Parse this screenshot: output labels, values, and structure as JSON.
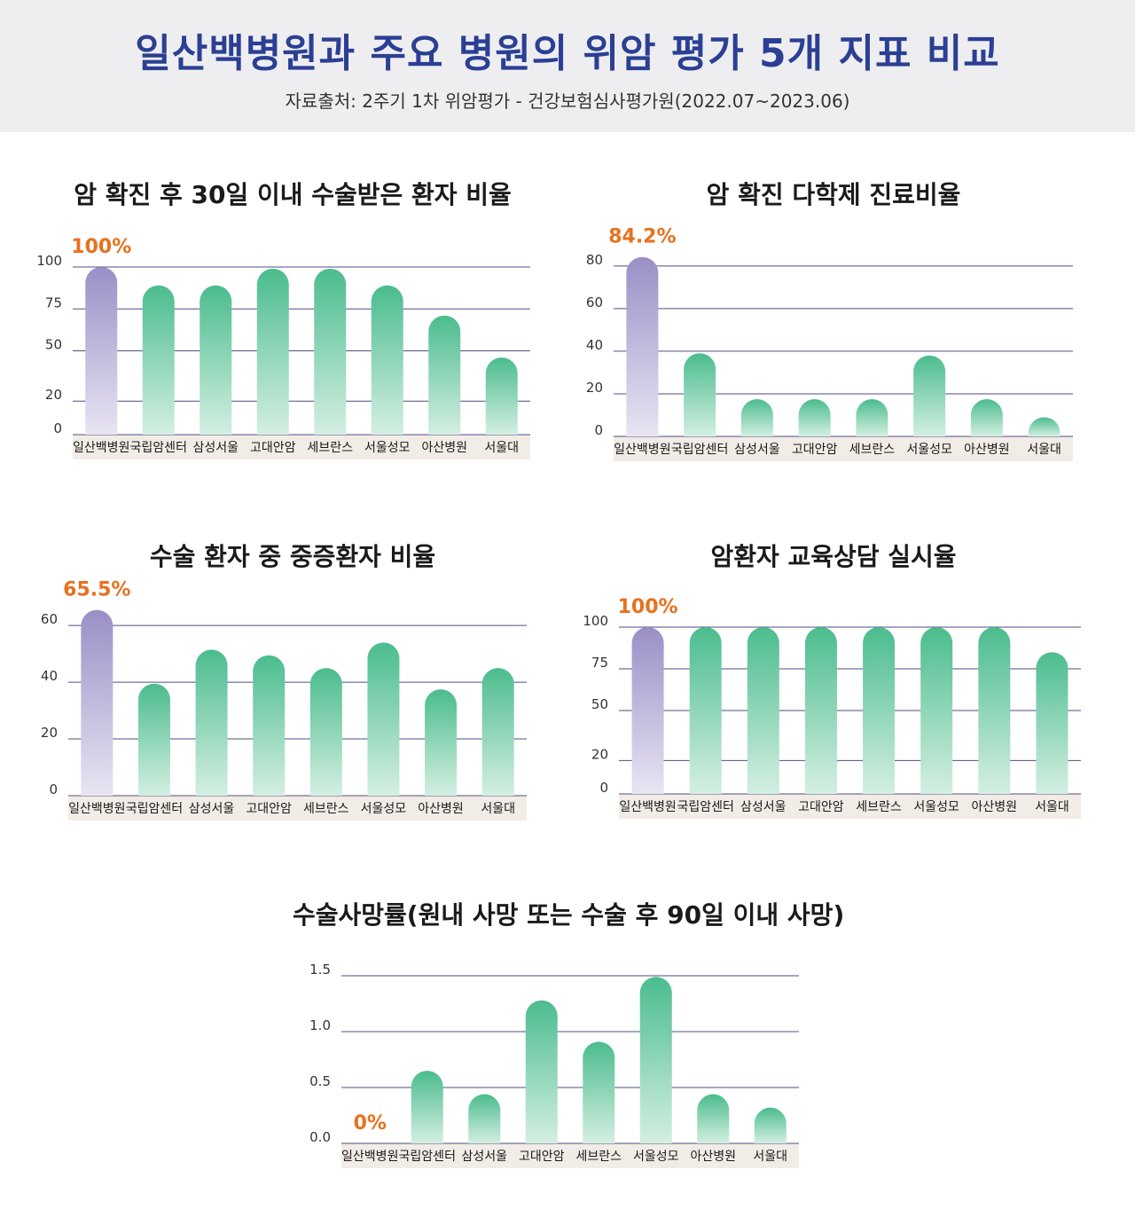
{
  "header": {
    "title": "일산백병원과 주요 병원의 위암 평가 5개 지표 비교",
    "source": "자료출처: 2주기 1차 위암평가 - 건강보험심사평가원(2022.07~2023.06)"
  },
  "colors": {
    "title_blue": "#2b3f94",
    "highlight_bar": "#9a8fc6",
    "normal_bar": "#4bbc8e",
    "highlight_label": "#e8711d",
    "gridline": "#4d4d85",
    "label_band": "#f2ece6"
  },
  "chart_data": [
    {
      "type": "bar",
      "title": "암 확진 후 30일 이내 수술받은 환자 비율",
      "categories": [
        "일산백병원",
        "국립암센터",
        "삼성서울",
        "고대안암",
        "세브란스",
        "서울성모",
        "아산병원",
        "서울대"
      ],
      "values": [
        100,
        89,
        89,
        99,
        99,
        89,
        71,
        46
      ],
      "yticks": [
        {
          "value": 0,
          "label": "0"
        },
        {
          "value": 20,
          "label": "20"
        },
        {
          "value": 50,
          "label": "50"
        },
        {
          "value": 75,
          "label": "75"
        },
        {
          "value": 100,
          "label": "100"
        }
      ],
      "highlight_index": 0,
      "highlight_label": "100%",
      "grid": true
    },
    {
      "type": "bar",
      "title": "암 확진 다학제 진료비율",
      "categories": [
        "일산백병원",
        "국립암센터",
        "삼성서울",
        "고대안암",
        "세브란스",
        "서울성모",
        "아산병원",
        "서울대"
      ],
      "values": [
        84.2,
        39,
        17.5,
        17.5,
        17.5,
        38,
        17.5,
        9
      ],
      "yticks": [
        {
          "value": 0,
          "label": "0"
        },
        {
          "value": 20,
          "label": "20"
        },
        {
          "value": 40,
          "label": "40"
        },
        {
          "value": 60,
          "label": "60"
        },
        {
          "value": 80,
          "label": "80"
        }
      ],
      "highlight_index": 0,
      "highlight_label": "84.2%",
      "grid": true
    },
    {
      "type": "bar",
      "title": "수술 환자 중 중증환자 비율",
      "categories": [
        "일산백병원",
        "국립암센터",
        "삼성서울",
        "고대안암",
        "세브란스",
        "서울성모",
        "아산병원",
        "서울대"
      ],
      "values": [
        65.5,
        39.5,
        51.5,
        49.5,
        45,
        54,
        37.5,
        45
      ],
      "yticks": [
        {
          "value": 0,
          "label": "0"
        },
        {
          "value": 20,
          "label": "20"
        },
        {
          "value": 40,
          "label": "40"
        },
        {
          "value": 60,
          "label": "60"
        }
      ],
      "highlight_index": 0,
      "highlight_label": "65.5%",
      "grid": true
    },
    {
      "type": "bar",
      "title": "암환자 교육상담 실시율",
      "categories": [
        "일산백병원",
        "국립암센터",
        "삼성서울",
        "고대안암",
        "세브란스",
        "서울성모",
        "아산병원",
        "서울대"
      ],
      "values": [
        100,
        100,
        100,
        100,
        100,
        100,
        100,
        85
      ],
      "yticks": [
        {
          "value": 0,
          "label": "0"
        },
        {
          "value": 20,
          "label": "20"
        },
        {
          "value": 50,
          "label": "50"
        },
        {
          "value": 75,
          "label": "75"
        },
        {
          "value": 100,
          "label": "100"
        }
      ],
      "highlight_index": 0,
      "highlight_label": "100%",
      "grid": true
    },
    {
      "type": "bar",
      "title": "수술사망률(원내 사망 또는 수술 후 90일 이내 사망)",
      "categories": [
        "일산백병원",
        "국립암센터",
        "삼성서울",
        "고대안암",
        "세브란스",
        "서울성모",
        "아산병원",
        "서울대"
      ],
      "values": [
        0,
        0.65,
        0.44,
        1.28,
        0.91,
        1.49,
        0.44,
        0.32
      ],
      "yticks": [
        {
          "value": 0,
          "label": "0.0"
        },
        {
          "value": 0.5,
          "label": "0.5"
        },
        {
          "value": 1.0,
          "label": "1.0"
        },
        {
          "value": 1.5,
          "label": "1.5"
        }
      ],
      "highlight_index": 0,
      "highlight_label": "0%",
      "grid": true
    }
  ]
}
